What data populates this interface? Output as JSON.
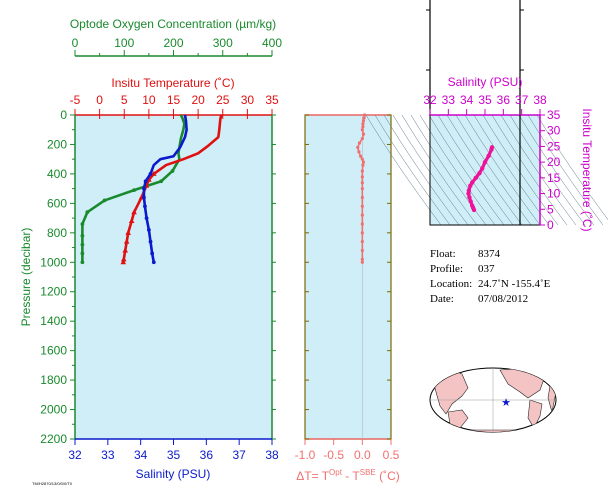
{
  "colors": {
    "panel_bg": "#cfeef8",
    "oxygen": "#1a8a2e",
    "temperature": "#e01010",
    "salinity": "#0a1acc",
    "delta_t": "#f07070",
    "ts_axis": "#cc00cc",
    "ts_data": "#ee1199",
    "dark_axis": "#7a6a00"
  },
  "chart_data": [
    {
      "type": "line",
      "panel": "profiles",
      "ylabel": "Pressure (decibar)",
      "ylim": [
        0,
        2200
      ],
      "yticks": [
        0,
        200,
        400,
        600,
        800,
        1000,
        1200,
        1400,
        1600,
        1800,
        2000,
        2200
      ],
      "axes": {
        "oxygen": {
          "label": "Optode Oxygen Concentration (µm/kg)",
          "range": [
            0,
            400
          ],
          "ticks": [
            0,
            100,
            200,
            300,
            400
          ]
        },
        "temperature": {
          "label": "Insitu Temperature (˚C)",
          "range": [
            -5,
            35
          ],
          "ticks": [
            -5,
            0,
            5,
            10,
            15,
            20,
            25,
            30,
            35
          ]
        },
        "salinity": {
          "label": "Salinity (PSU)",
          "range": [
            32,
            38
          ],
          "ticks": [
            32,
            33,
            34,
            35,
            36,
            37,
            38
          ]
        }
      },
      "series": [
        {
          "key": "oxygen",
          "axis": "oxygen",
          "points": [
            [
              215,
              0
            ],
            [
              218,
              20
            ],
            [
              222,
              60
            ],
            [
              220,
              100
            ],
            [
              215,
              160
            ],
            [
              212,
              220
            ],
            [
              210,
              260
            ],
            [
              212,
              300
            ],
            [
              198,
              380
            ],
            [
              175,
              450
            ],
            [
              120,
              510
            ],
            [
              60,
              580
            ],
            [
              25,
              660
            ],
            [
              15,
              740
            ],
            [
              15,
              820
            ],
            [
              15,
              880
            ],
            [
              15,
              940
            ],
            [
              15,
              1000
            ]
          ]
        },
        {
          "key": "temperature",
          "axis": "temperature",
          "points": [
            [
              24.7,
              0
            ],
            [
              24.5,
              30
            ],
            [
              24.3,
              100
            ],
            [
              24.1,
              150
            ],
            [
              22,
              210
            ],
            [
              20,
              260
            ],
            [
              17,
              300
            ],
            [
              13.5,
              340
            ],
            [
              11,
              400
            ],
            [
              10,
              440
            ],
            [
              9.5,
              480
            ],
            [
              8.5,
              560
            ],
            [
              7,
              660
            ],
            [
              6.5,
              720
            ],
            [
              5.8,
              800
            ],
            [
              5.5,
              860
            ],
            [
              5.2,
              920
            ],
            [
              4.9,
              980
            ],
            [
              4.8,
              1000
            ]
          ]
        },
        {
          "key": "salinity",
          "axis": "salinity",
          "points": [
            [
              35.35,
              0
            ],
            [
              35.38,
              40
            ],
            [
              35.4,
              100
            ],
            [
              35.35,
              150
            ],
            [
              35.2,
              220
            ],
            [
              35.0,
              280
            ],
            [
              34.6,
              300
            ],
            [
              34.4,
              340
            ],
            [
              34.3,
              400
            ],
            [
              34.15,
              450
            ],
            [
              34.1,
              500
            ],
            [
              34.1,
              560
            ],
            [
              34.13,
              620
            ],
            [
              34.18,
              700
            ],
            [
              34.25,
              780
            ],
            [
              34.3,
              860
            ],
            [
              34.35,
              940
            ],
            [
              34.4,
              1000
            ]
          ]
        }
      ]
    },
    {
      "type": "scatter",
      "panel": "delta_t",
      "xlabel_parts": [
        "ΔT= T",
        "Opt",
        " - T",
        "SBE",
        " (˚C)"
      ],
      "xlim": [
        -1.0,
        0.5
      ],
      "xticks": [
        "-1.0",
        "-0.5",
        "0.0",
        "0.5"
      ],
      "xtick_values": [
        -1.0,
        -0.5,
        0.0,
        0.5
      ],
      "points": [
        [
          0.04,
          0
        ],
        [
          0.03,
          20
        ],
        [
          0.02,
          40
        ],
        [
          0.01,
          60
        ],
        [
          0.01,
          80
        ],
        [
          0.0,
          100
        ],
        [
          0.02,
          130
        ],
        [
          0.0,
          160
        ],
        [
          -0.05,
          190
        ],
        [
          -0.08,
          220
        ],
        [
          -0.06,
          250
        ],
        [
          -0.03,
          280
        ],
        [
          0.0,
          300
        ],
        [
          0.02,
          320
        ],
        [
          0.01,
          340
        ],
        [
          0.0,
          380
        ],
        [
          0.0,
          420
        ],
        [
          0.0,
          460
        ],
        [
          0.0,
          500
        ],
        [
          0.0,
          560
        ],
        [
          0.0,
          620
        ],
        [
          0.0,
          680
        ],
        [
          0.0,
          740
        ],
        [
          0.0,
          800
        ],
        [
          0.0,
          860
        ],
        [
          0.0,
          920
        ],
        [
          0.0,
          980
        ],
        [
          0.0,
          1000
        ]
      ]
    },
    {
      "type": "line",
      "panel": "ts_diagram",
      "xlabel": "Salinity (PSU)",
      "ylabel": "Insitu Temperature (˚C)",
      "xlim": [
        32,
        38
      ],
      "ylim": [
        0,
        35
      ],
      "xticks": [
        32,
        33,
        34,
        35,
        36,
        37,
        38
      ],
      "yticks": [
        0,
        5,
        10,
        15,
        20,
        25,
        30,
        35
      ],
      "points": [
        [
          34.4,
          4.8
        ],
        [
          34.35,
          5.5
        ],
        [
          34.3,
          6.2
        ],
        [
          34.22,
          7.5
        ],
        [
          34.15,
          8.8
        ],
        [
          34.1,
          10
        ],
        [
          34.12,
          11
        ],
        [
          34.2,
          12.5
        ],
        [
          34.3,
          13.5
        ],
        [
          34.5,
          15
        ],
        [
          34.7,
          16.5
        ],
        [
          34.85,
          18
        ],
        [
          35.0,
          20
        ],
        [
          35.2,
          22
        ],
        [
          35.35,
          24
        ],
        [
          35.38,
          24.7
        ]
      ]
    }
  ],
  "float_info": {
    "float_label": "Float:",
    "float_value": "8374",
    "profile_label": "Profile:",
    "profile_value": "037",
    "location_label": "Location:",
    "location_value": "24.7˚N  -155.4˚E",
    "date_label": "Date:",
    "date_value": "07/08/2012"
  },
  "footer_stamp": "TM/H2870/13/0/0/0/T0"
}
